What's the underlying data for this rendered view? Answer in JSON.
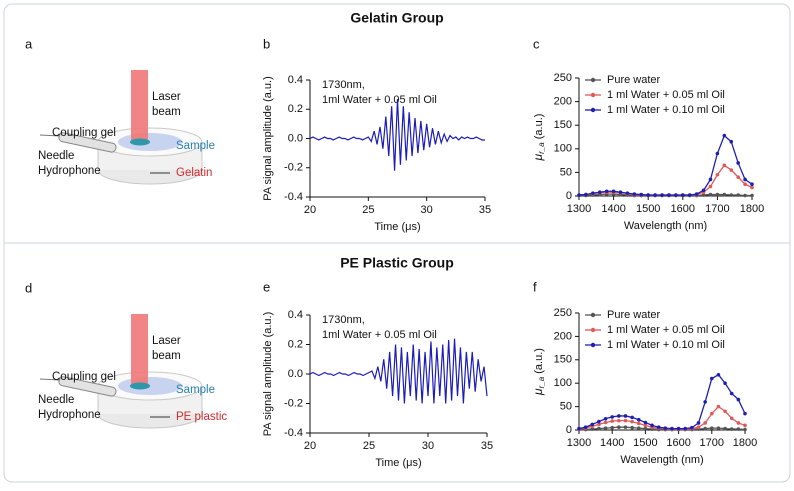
{
  "group_titles": [
    "Gelatin Group",
    "PE Plastic Group"
  ],
  "diagrams": [
    {
      "panel_label": "a",
      "laser_beam": [
        "Laser",
        "beam"
      ],
      "coupling_gel": "Coupling gel",
      "sample": "Sample",
      "needle_hydrophone": [
        "Needle",
        "Hydrophone"
      ],
      "base": "Gelatin"
    },
    {
      "panel_label": "d",
      "laser_beam": [
        "Laser",
        "beam"
      ],
      "coupling_gel": "Coupling gel",
      "sample": "Sample",
      "needle_hydrophone": [
        "Needle",
        "Hydrophone"
      ],
      "base": "PE plastic"
    }
  ],
  "chart_data": [
    {
      "type": "line",
      "panel_label": "b",
      "annotation": [
        "1730nm,",
        "1ml Water + 0.05 ml Oil"
      ],
      "xlabel": "Time (μs)",
      "ylabel": "PA signal amplitude (a.u.)",
      "xlim": [
        20,
        35
      ],
      "xticks": [
        20,
        25,
        30,
        35
      ],
      "ylim": [
        -0.4,
        0.4
      ],
      "yticks": [
        -0.4,
        -0.2,
        {
          "value": 0,
          "label": "0.0"
        },
        0.2,
        0.4
      ],
      "x": [
        20,
        20.25,
        20.5,
        20.75,
        21,
        21.25,
        21.5,
        21.75,
        22,
        22.25,
        22.5,
        22.75,
        23,
        23.25,
        23.5,
        23.75,
        24,
        24.25,
        24.5,
        24.75,
        25,
        25.25,
        25.5,
        25.75,
        26,
        26.25,
        26.5,
        26.75,
        27,
        27.25,
        27.5,
        27.75,
        28,
        28.25,
        28.5,
        28.75,
        29,
        29.25,
        29.5,
        29.75,
        30,
        30.25,
        30.5,
        30.75,
        31,
        31.25,
        31.5,
        31.75,
        32,
        32.25,
        32.5,
        32.75,
        33,
        33.25,
        33.5,
        33.75,
        34,
        34.25,
        34.5,
        34.75,
        35
      ],
      "series": [
        {
          "color": "#1c1cb8",
          "values": [
            0,
            0.01,
            0,
            -0.01,
            0,
            0.01,
            0,
            0,
            -0.01,
            0,
            0.01,
            0,
            0,
            -0.01,
            0,
            0.01,
            0,
            0,
            -0.01,
            0,
            0.01,
            -0.02,
            0.05,
            -0.04,
            0.08,
            -0.07,
            0.15,
            -0.12,
            0.22,
            -0.22,
            0.27,
            -0.18,
            0.22,
            -0.15,
            0.18,
            -0.12,
            0.14,
            -0.1,
            0.12,
            -0.08,
            0.1,
            -0.06,
            0.07,
            -0.04,
            0.05,
            -0.03,
            0.03,
            -0.02,
            0.02,
            0,
            0.01,
            -0.01,
            0.01,
            0,
            0.01,
            0,
            0,
            0.01,
            0,
            -0.01,
            -0.01
          ]
        }
      ]
    },
    {
      "type": "line",
      "panel_label": "c",
      "markers": true,
      "legend": "upper left",
      "xlabel": "Wavelength (nm)",
      "ylabel_symbol": "μ",
      "ylabel_sub": "r_a",
      "ylabel_unit": " (a.u.)",
      "xlim": [
        1300,
        1800
      ],
      "xticks": [
        1300,
        1400,
        1500,
        1600,
        1700,
        1800
      ],
      "ylim": [
        0,
        250
      ],
      "yticks": [
        0,
        50,
        100,
        150,
        200,
        250
      ],
      "x": [
        1300,
        1320,
        1340,
        1360,
        1380,
        1400,
        1420,
        1440,
        1460,
        1480,
        1500,
        1520,
        1540,
        1560,
        1580,
        1600,
        1620,
        1640,
        1660,
        1680,
        1700,
        1720,
        1740,
        1760,
        1780,
        1800
      ],
      "series": [
        {
          "name": "Pure water",
          "color": "#555555",
          "values": [
            1,
            1,
            2,
            3,
            4,
            4,
            3,
            2,
            1,
            1,
            1,
            1,
            1,
            1,
            1,
            1,
            1,
            1,
            2,
            3,
            3,
            3,
            2,
            2,
            1,
            1
          ]
        },
        {
          "name": "1 ml Water + 0.05 ml Oil",
          "color": "#e05a5a",
          "values": [
            2,
            3,
            5,
            7,
            8,
            8,
            7,
            5,
            3,
            2,
            2,
            2,
            2,
            2,
            2,
            2,
            2,
            3,
            8,
            20,
            45,
            65,
            55,
            40,
            25,
            18
          ]
        },
        {
          "name": "1 ml Water + 0.10 ml Oil",
          "color": "#1f1fb0",
          "values": [
            2,
            3,
            6,
            8,
            10,
            10,
            8,
            6,
            4,
            3,
            2,
            2,
            2,
            2,
            2,
            2,
            2,
            4,
            12,
            35,
            90,
            128,
            115,
            70,
            35,
            25
          ]
        }
      ]
    },
    {
      "type": "line",
      "panel_label": "e",
      "annotation": [
        "1730nm,",
        "1ml Water + 0.05 ml Oil"
      ],
      "xlabel": "Time (μs)",
      "ylabel": "PA signal amplitude (a.u.)",
      "xlim": [
        20,
        35
      ],
      "xticks": [
        20,
        25,
        30,
        35
      ],
      "ylim": [
        -0.4,
        0.4
      ],
      "yticks": [
        -0.4,
        -0.2,
        {
          "value": 0,
          "label": "0.0"
        },
        0.2,
        0.4
      ],
      "x": [
        20,
        20.25,
        20.5,
        20.75,
        21,
        21.25,
        21.5,
        21.75,
        22,
        22.25,
        22.5,
        22.75,
        23,
        23.25,
        23.5,
        23.75,
        24,
        24.25,
        24.5,
        24.75,
        25,
        25.25,
        25.5,
        25.75,
        26,
        26.25,
        26.5,
        26.75,
        27,
        27.25,
        27.5,
        27.75,
        28,
        28.25,
        28.5,
        28.75,
        29,
        29.25,
        29.5,
        29.75,
        30,
        30.25,
        30.5,
        30.75,
        31,
        31.25,
        31.5,
        31.75,
        32,
        32.25,
        32.5,
        32.75,
        33,
        33.25,
        33.5,
        33.75,
        34,
        34.25,
        34.5,
        34.75,
        35
      ],
      "series": [
        {
          "color": "#1c1cb8",
          "values": [
            0,
            0.01,
            0,
            -0.01,
            0,
            0.01,
            0,
            0,
            -0.01,
            0,
            0.01,
            0,
            0,
            -0.01,
            0,
            0.01,
            0,
            0,
            -0.01,
            0,
            0.01,
            0.02,
            -0.03,
            0.05,
            -0.05,
            0.1,
            -0.1,
            0.15,
            -0.15,
            0.2,
            -0.18,
            0.18,
            -0.2,
            0.15,
            -0.15,
            0.2,
            -0.18,
            0.17,
            -0.2,
            0.15,
            -0.15,
            0.22,
            -0.2,
            0.18,
            -0.15,
            0.2,
            -0.2,
            0.23,
            -0.18,
            0.24,
            -0.15,
            0.18,
            -0.2,
            0.15,
            -0.1,
            0.15,
            -0.12,
            0.1,
            -0.05,
            0.05,
            -0.15
          ]
        }
      ]
    },
    {
      "type": "line",
      "panel_label": "f",
      "markers": true,
      "legend": "upper left",
      "xlabel": "Wavelength (nm)",
      "ylabel_symbol": "μ",
      "ylabel_sub": "r_a",
      "ylabel_unit": " (a.u.)",
      "xlim": [
        1300,
        1800
      ],
      "xticks": [
        1300,
        1400,
        1500,
        1600,
        1700,
        1800
      ],
      "ylim": [
        0,
        250
      ],
      "yticks": [
        0,
        50,
        100,
        150,
        200,
        250
      ],
      "x": [
        1300,
        1320,
        1340,
        1360,
        1380,
        1400,
        1420,
        1440,
        1460,
        1480,
        1500,
        1520,
        1540,
        1560,
        1580,
        1600,
        1620,
        1640,
        1660,
        1680,
        1700,
        1720,
        1740,
        1760,
        1780,
        1800
      ],
      "series": [
        {
          "name": "Pure water",
          "color": "#555555",
          "values": [
            1,
            1,
            2,
            3,
            4,
            5,
            6,
            6,
            5,
            4,
            3,
            2,
            1,
            1,
            1,
            1,
            1,
            1,
            2,
            3,
            4,
            4,
            3,
            2,
            2,
            1
          ]
        },
        {
          "name": "1 ml Water + 0.05 ml Oil",
          "color": "#e05a5a",
          "values": [
            2,
            4,
            8,
            12,
            16,
            19,
            20,
            20,
            18,
            14,
            10,
            6,
            4,
            3,
            2,
            2,
            2,
            3,
            6,
            15,
            35,
            50,
            40,
            25,
            15,
            10
          ]
        },
        {
          "name": "1 ml Water + 0.10 ml Oil",
          "color": "#1f1fb0",
          "values": [
            3,
            6,
            12,
            18,
            24,
            28,
            30,
            30,
            27,
            22,
            16,
            10,
            6,
            4,
            3,
            3,
            3,
            5,
            15,
            60,
            110,
            118,
            100,
            78,
            65,
            35
          ]
        }
      ]
    }
  ]
}
